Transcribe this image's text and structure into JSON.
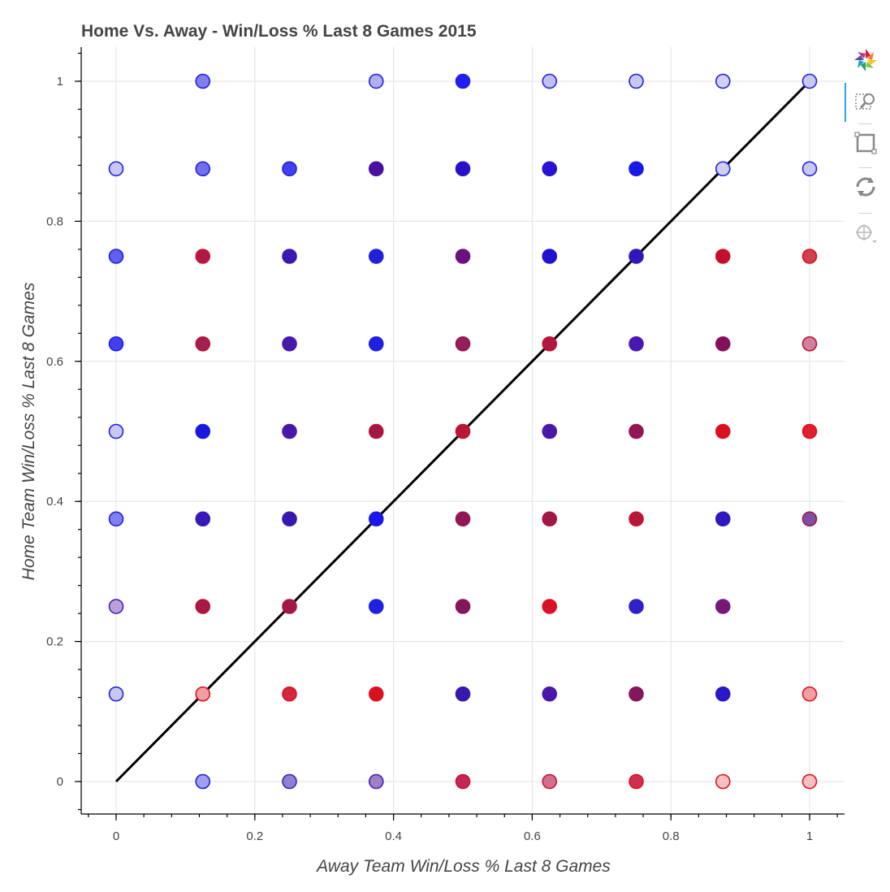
{
  "chart_data": {
    "type": "scatter",
    "title": "Home Vs. Away - Win/Loss % Last 8 Games 2015",
    "xlabel": "Away Team Win/Loss % Last 8 Games",
    "ylabel": "Home Team Win/Loss % Last 8 Games",
    "xlim": [
      -0.05,
      1.05
    ],
    "ylim": [
      -0.05,
      1.05
    ],
    "xticks": [
      0,
      0.2,
      0.4,
      0.6,
      0.8,
      1
    ],
    "yticks": [
      0,
      0.2,
      0.4,
      0.6,
      0.8,
      1
    ],
    "xtick_labels": [
      "0",
      "0.2",
      "0.4",
      "0.6",
      "0.8",
      "1"
    ],
    "ytick_labels": [
      "0",
      "0.2",
      "0.4",
      "0.6",
      "0.8",
      "1"
    ],
    "grid": true,
    "reference_line": {
      "x": [
        0,
        1
      ],
      "y": [
        0,
        1
      ],
      "color": "#000000"
    },
    "points": [
      {
        "x": 0.125,
        "y": 1,
        "c": "#8080f0",
        "s": "#2020e0"
      },
      {
        "x": 0.375,
        "y": 1,
        "c": "#b0b0f0",
        "s": "#2020e0"
      },
      {
        "x": 0.5,
        "y": 1,
        "c": "#2020f0",
        "s": "#2020e0"
      },
      {
        "x": 0.625,
        "y": 1,
        "c": "#c0c0f5",
        "s": "#2020e0"
      },
      {
        "x": 0.75,
        "y": 1,
        "c": "#c8c8f5",
        "s": "#2020e0"
      },
      {
        "x": 0.875,
        "y": 1,
        "c": "#d0d0f8",
        "s": "#2020e0"
      },
      {
        "x": 1,
        "y": 1,
        "c": "#c8c8f5",
        "s": "#2020e0"
      },
      {
        "x": 0,
        "y": 0.875,
        "c": "#c8c8f5",
        "s": "#2020e0"
      },
      {
        "x": 0.125,
        "y": 0.875,
        "c": "#7070ee",
        "s": "#2020e0"
      },
      {
        "x": 0.25,
        "y": 0.875,
        "c": "#4040ee",
        "s": "#2020e0"
      },
      {
        "x": 0.375,
        "y": 0.875,
        "c": "#4a10a0",
        "s": "#4a10a0"
      },
      {
        "x": 0.5,
        "y": 0.875,
        "c": "#2a10c8",
        "s": "#2a10c8"
      },
      {
        "x": 0.625,
        "y": 0.875,
        "c": "#2a10d0",
        "s": "#2a10d0"
      },
      {
        "x": 0.75,
        "y": 0.875,
        "c": "#1818e8",
        "s": "#1818e8"
      },
      {
        "x": 0.875,
        "y": 0.875,
        "c": "#d0d0f8",
        "s": "#2020e0"
      },
      {
        "x": 1,
        "y": 0.875,
        "c": "#c8c8f5",
        "s": "#2020e0"
      },
      {
        "x": 0,
        "y": 0.75,
        "c": "#6060ee",
        "s": "#2020e0"
      },
      {
        "x": 0.125,
        "y": 0.75,
        "c": "#b01848",
        "s": "#d01030"
      },
      {
        "x": 0.25,
        "y": 0.75,
        "c": "#3a18b0",
        "s": "#3a18b0"
      },
      {
        "x": 0.375,
        "y": 0.75,
        "c": "#2020d8",
        "s": "#2020d8"
      },
      {
        "x": 0.5,
        "y": 0.75,
        "c": "#6a1080",
        "s": "#6a1080"
      },
      {
        "x": 0.625,
        "y": 0.75,
        "c": "#2010d0",
        "s": "#2010d0"
      },
      {
        "x": 0.75,
        "y": 0.75,
        "c": "#3018b8",
        "s": "#3018b8"
      },
      {
        "x": 0.875,
        "y": 0.75,
        "c": "#c01030",
        "s": "#d81020"
      },
      {
        "x": 1,
        "y": 0.75,
        "c": "#d04050",
        "s": "#d81020"
      },
      {
        "x": 0,
        "y": 0.625,
        "c": "#4040ee",
        "s": "#2020e0"
      },
      {
        "x": 0.125,
        "y": 0.625,
        "c": "#a02050",
        "s": "#c01030"
      },
      {
        "x": 0.25,
        "y": 0.625,
        "c": "#4818a8",
        "s": "#4818a8"
      },
      {
        "x": 0.375,
        "y": 0.625,
        "c": "#2020e0",
        "s": "#2020e0"
      },
      {
        "x": 0.5,
        "y": 0.625,
        "c": "#902060",
        "s": "#a01040"
      },
      {
        "x": 0.625,
        "y": 0.625,
        "c": "#b01840",
        "s": "#c01030"
      },
      {
        "x": 0.75,
        "y": 0.625,
        "c": "#4818b0",
        "s": "#4818b0"
      },
      {
        "x": 0.875,
        "y": 0.625,
        "c": "#801060",
        "s": "#901050"
      },
      {
        "x": 1,
        "y": 0.625,
        "c": "#d080a0",
        "s": "#c01030"
      },
      {
        "x": 0,
        "y": 0.5,
        "c": "#c8c8f5",
        "s": "#2020e0"
      },
      {
        "x": 0.125,
        "y": 0.5,
        "c": "#1818e0",
        "s": "#1818e0"
      },
      {
        "x": 0.25,
        "y": 0.5,
        "c": "#4a18a8",
        "s": "#4a18a8"
      },
      {
        "x": 0.375,
        "y": 0.5,
        "c": "#a01848",
        "s": "#c01030"
      },
      {
        "x": 0.5,
        "y": 0.5,
        "c": "#b81838",
        "s": "#c81028"
      },
      {
        "x": 0.625,
        "y": 0.5,
        "c": "#4818a8",
        "s": "#4818a8"
      },
      {
        "x": 0.75,
        "y": 0.5,
        "c": "#901858",
        "s": "#a01040"
      },
      {
        "x": 0.875,
        "y": 0.5,
        "c": "#d81020",
        "s": "#e01020"
      },
      {
        "x": 1,
        "y": 0.5,
        "c": "#e02030",
        "s": "#e01020"
      },
      {
        "x": 0,
        "y": 0.375,
        "c": "#8080f0",
        "s": "#2020e0"
      },
      {
        "x": 0.125,
        "y": 0.375,
        "c": "#3818b8",
        "s": "#3818b8"
      },
      {
        "x": 0.25,
        "y": 0.375,
        "c": "#3a18b0",
        "s": "#3a18b0"
      },
      {
        "x": 0.375,
        "y": 0.375,
        "c": "#1818e8",
        "s": "#1818e8"
      },
      {
        "x": 0.5,
        "y": 0.375,
        "c": "#901858",
        "s": "#a01040"
      },
      {
        "x": 0.625,
        "y": 0.375,
        "c": "#a01848",
        "s": "#b01038"
      },
      {
        "x": 0.75,
        "y": 0.375,
        "c": "#b81838",
        "s": "#c81028"
      },
      {
        "x": 0.875,
        "y": 0.375,
        "c": "#3018c0",
        "s": "#3018c0"
      },
      {
        "x": 1,
        "y": 0.375,
        "c": "#8050a0",
        "s": "#a01050"
      },
      {
        "x": 0,
        "y": 0.25,
        "c": "#c0a0d8",
        "s": "#4020c0"
      },
      {
        "x": 0.125,
        "y": 0.25,
        "c": "#a81848",
        "s": "#c01030"
      },
      {
        "x": 0.25,
        "y": 0.25,
        "c": "#a01848",
        "s": "#b81038"
      },
      {
        "x": 0.375,
        "y": 0.25,
        "c": "#2020e0",
        "s": "#2020e0"
      },
      {
        "x": 0.5,
        "y": 0.25,
        "c": "#801860",
        "s": "#901050"
      },
      {
        "x": 0.625,
        "y": 0.25,
        "c": "#d81028",
        "s": "#e01020"
      },
      {
        "x": 0.75,
        "y": 0.25,
        "c": "#3020c8",
        "s": "#3020c8"
      },
      {
        "x": 0.875,
        "y": 0.25,
        "c": "#7a1870",
        "s": "#6a18a0"
      },
      {
        "x": 0,
        "y": 0.125,
        "c": "#c8c8f5",
        "s": "#2020e0"
      },
      {
        "x": 0.125,
        "y": 0.125,
        "c": "#f0a0a0",
        "s": "#e01020"
      },
      {
        "x": 0.25,
        "y": 0.125,
        "c": "#d02840",
        "s": "#e01020"
      },
      {
        "x": 0.375,
        "y": 0.125,
        "c": "#d81020",
        "s": "#e01020"
      },
      {
        "x": 0.5,
        "y": 0.125,
        "c": "#3818b0",
        "s": "#3818b0"
      },
      {
        "x": 0.625,
        "y": 0.125,
        "c": "#4a18a8",
        "s": "#4a18a8"
      },
      {
        "x": 0.75,
        "y": 0.125,
        "c": "#801860",
        "s": "#901050"
      },
      {
        "x": 0.875,
        "y": 0.125,
        "c": "#2a18c8",
        "s": "#2a18c8"
      },
      {
        "x": 1,
        "y": 0.125,
        "c": "#f0a0a0",
        "s": "#e01020"
      },
      {
        "x": 0.125,
        "y": 0,
        "c": "#a0a0f0",
        "s": "#2020e0"
      },
      {
        "x": 0.25,
        "y": 0,
        "c": "#9080d0",
        "s": "#4020c0"
      },
      {
        "x": 0.375,
        "y": 0,
        "c": "#a080c0",
        "s": "#4020c0"
      },
      {
        "x": 0.5,
        "y": 0,
        "c": "#c02858",
        "s": "#d01030"
      },
      {
        "x": 0.625,
        "y": 0,
        "c": "#d07090",
        "s": "#d01030"
      },
      {
        "x": 0.75,
        "y": 0,
        "c": "#d03050",
        "s": "#e01020"
      },
      {
        "x": 0.875,
        "y": 0,
        "c": "#f8c0c0",
        "s": "#e01020"
      },
      {
        "x": 1,
        "y": 0,
        "c": "#f8c0c0",
        "s": "#e01020"
      }
    ]
  },
  "toolbar": {
    "tools": [
      {
        "name": "bokeh-logo-icon"
      },
      {
        "name": "zoom-icon"
      },
      {
        "name": "box-select-icon"
      },
      {
        "name": "reset-icon"
      },
      {
        "name": "crosshair-icon"
      }
    ]
  }
}
